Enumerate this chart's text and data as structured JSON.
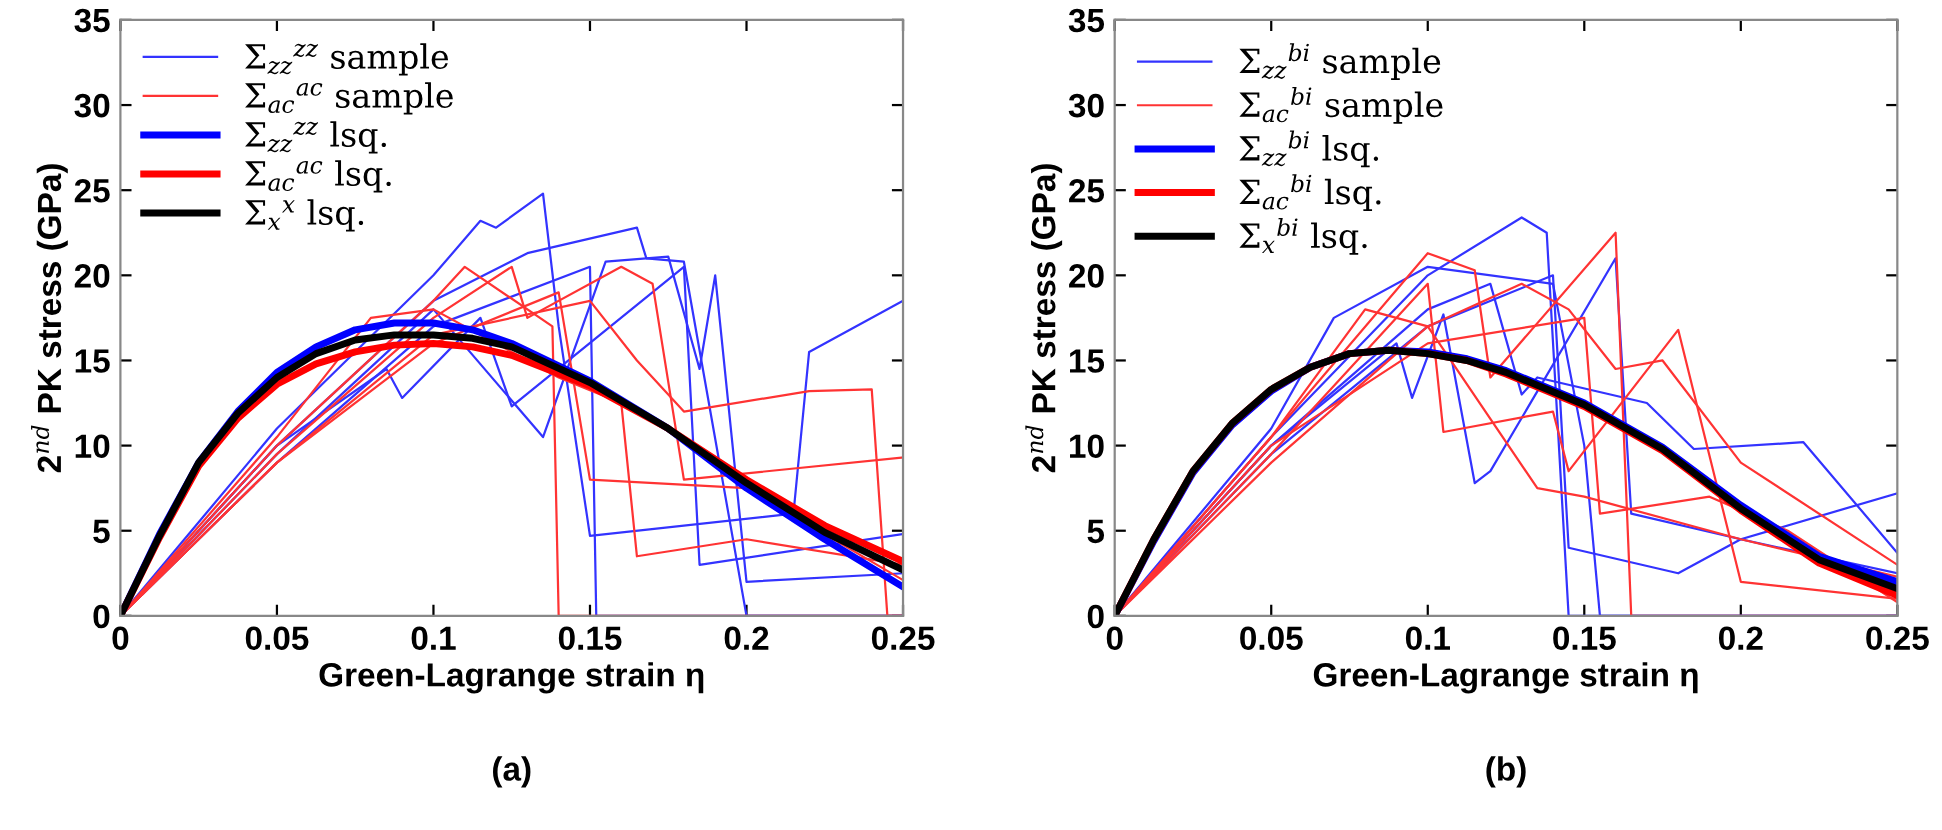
{
  "chart_data": [
    {
      "type": "line",
      "xlabel": "Green-Lagrange strain η",
      "ylabel": "2$^{nd}$ PK stress (GPa)",
      "annotations": [
        "(a)"
      ],
      "xlim": [
        0,
        0.25
      ],
      "ylim": [
        0,
        35
      ],
      "xticks": [
        0,
        0.05,
        0.1,
        0.15,
        0.2,
        0.25
      ],
      "yticks": [
        0,
        5,
        10,
        15,
        20,
        25,
        30,
        35
      ],
      "grid": false,
      "legend": "top left",
      "series": [
        {
          "name": "Σ$_{zz}$$^{zz}$ sample",
          "color": "#3333ff",
          "x": [
            0,
            0.05,
            0.1,
            0.115,
            0.12,
            0.135,
            0.14,
            0.15,
            0.215,
            0.22,
            0.25
          ],
          "values": [
            0,
            11,
            20,
            23.2,
            22.8,
            24.8,
            17,
            4.7,
            6,
            15.5,
            18.5
          ]
        },
        {
          "color": "#3333ff",
          "x": [
            0,
            0.05,
            0.1,
            0.13,
            0.165,
            0.168,
            0.18,
            0.2,
            0.25
          ],
          "values": [
            0,
            10,
            18.5,
            21.3,
            22.8,
            21,
            20.8,
            0,
            0
          ]
        },
        {
          "color": "#3333ff",
          "x": [
            0,
            0.05,
            0.085,
            0.09,
            0.115,
            0.125,
            0.18,
            0.185,
            0.25
          ],
          "values": [
            0,
            10,
            14.5,
            12.8,
            17.5,
            12.3,
            20.5,
            3,
            4.8
          ]
        },
        {
          "color": "#3333ff",
          "x": [
            0,
            0.05,
            0.1,
            0.135,
            0.155,
            0.175,
            0.185,
            0.19,
            0.2,
            0.25
          ],
          "values": [
            0,
            9.5,
            18,
            10.5,
            20.8,
            21.1,
            14.5,
            20,
            2,
            2.5
          ]
        },
        {
          "color": "#3333ff",
          "x": [
            0,
            0.05,
            0.1,
            0.15,
            0.152,
            0.18,
            0.25
          ],
          "values": [
            0,
            9,
            17,
            20.5,
            0,
            0,
            0
          ]
        },
        {
          "name": "Σ$_{ac}$$^{ac}$ sample",
          "color": "#ff3333",
          "x": [
            0,
            0.05,
            0.1,
            0.11,
            0.138,
            0.14,
            0.25
          ],
          "values": [
            0,
            10,
            18.5,
            20.5,
            17,
            0,
            0
          ]
        },
        {
          "color": "#ff3333",
          "x": [
            0,
            0.05,
            0.1,
            0.125,
            0.13,
            0.16,
            0.17,
            0.18,
            0.25
          ],
          "values": [
            0,
            9.5,
            17.5,
            20.5,
            17.5,
            20.5,
            19.5,
            8,
            9.3
          ]
        },
        {
          "color": "#ff3333",
          "x": [
            0,
            0.05,
            0.1,
            0.15,
            0.165,
            0.18,
            0.22,
            0.24,
            0.245,
            0.25
          ],
          "values": [
            0,
            9,
            16.5,
            18.5,
            15,
            12,
            13.2,
            13.3,
            0,
            0
          ]
        },
        {
          "color": "#ff3333",
          "x": [
            0,
            0.05,
            0.08,
            0.1,
            0.14,
            0.16,
            0.165,
            0.2,
            0.25
          ],
          "values": [
            0,
            10.5,
            17.5,
            18,
            14,
            12.5,
            3.5,
            4.5,
            3
          ]
        },
        {
          "color": "#ff3333",
          "x": [
            0,
            0.05,
            0.1,
            0.14,
            0.15,
            0.2,
            0.25
          ],
          "values": [
            0,
            9,
            16,
            19,
            8,
            7.5,
            2.1
          ]
        },
        {
          "name": "Σ$_{zz}$$^{zz}$ lsq.",
          "color": "#0000ff",
          "x": [
            0,
            0.0125,
            0.025,
            0.0375,
            0.05,
            0.0625,
            0.075,
            0.0875,
            0.1,
            0.1125,
            0.125,
            0.15,
            0.175,
            0.2,
            0.225,
            0.25
          ],
          "values": [
            0,
            4.8,
            9,
            12,
            14.3,
            15.8,
            16.8,
            17.2,
            17.2,
            16.8,
            16,
            13.8,
            11,
            7.5,
            4.5,
            1.7
          ]
        },
        {
          "name": "Σ$_{ac}$$^{ac}$ lsq.",
          "color": "#ff0000",
          "x": [
            0,
            0.0125,
            0.025,
            0.0375,
            0.05,
            0.0625,
            0.075,
            0.0875,
            0.1,
            0.1125,
            0.125,
            0.15,
            0.175,
            0.2,
            0.225,
            0.25
          ],
          "values": [
            0,
            4.6,
            8.8,
            11.6,
            13.6,
            14.8,
            15.5,
            15.9,
            16,
            15.8,
            15.3,
            13.5,
            11,
            8,
            5.3,
            3.2
          ]
        },
        {
          "name": "Σ$_{x}$$^{x}$ lsq.",
          "color": "#000000",
          "x": [
            0,
            0.0125,
            0.025,
            0.0375,
            0.05,
            0.0625,
            0.075,
            0.0875,
            0.1,
            0.1125,
            0.125,
            0.15,
            0.175,
            0.2,
            0.225,
            0.25
          ],
          "values": [
            0,
            4.7,
            9,
            11.9,
            14,
            15.4,
            16.2,
            16.5,
            16.5,
            16.3,
            15.8,
            13.7,
            11,
            7.8,
            4.9,
            2.7
          ]
        }
      ]
    },
    {
      "type": "line",
      "xlabel": "Green-Lagrange strain η",
      "ylabel": "2$^{nd}$ PK stress (GPa)",
      "annotations": [
        "(b)"
      ],
      "xlim": [
        0,
        0.25
      ],
      "ylim": [
        0,
        35
      ],
      "xticks": [
        0,
        0.05,
        0.1,
        0.15,
        0.2,
        0.25
      ],
      "yticks": [
        0,
        5,
        10,
        15,
        20,
        25,
        30,
        35
      ],
      "grid": false,
      "legend": "top left",
      "series": [
        {
          "name": "Σ$_{zz}$$^{bi}$ sample",
          "color": "#3333ff",
          "x": [
            0,
            0.05,
            0.1,
            0.13,
            0.138,
            0.145,
            0.25
          ],
          "values": [
            0,
            10.5,
            20,
            23.4,
            22.5,
            0,
            0
          ]
        },
        {
          "color": "#3333ff",
          "x": [
            0,
            0.05,
            0.07,
            0.1,
            0.14,
            0.15,
            0.155,
            0.25
          ],
          "values": [
            0,
            11,
            17.5,
            20.5,
            19.5,
            10,
            0,
            0
          ]
        },
        {
          "color": "#3333ff",
          "x": [
            0,
            0.05,
            0.09,
            0.095,
            0.105,
            0.115,
            0.12,
            0.16,
            0.165,
            0.2,
            0.25
          ],
          "values": [
            0,
            10,
            16,
            12.8,
            17.7,
            7.8,
            8.5,
            21,
            6,
            4.5,
            7.2
          ]
        },
        {
          "color": "#3333ff",
          "x": [
            0,
            0.05,
            0.1,
            0.12,
            0.13,
            0.135,
            0.17,
            0.185,
            0.22,
            0.25
          ],
          "values": [
            0,
            10,
            18,
            19.5,
            13,
            14,
            12.5,
            9.8,
            10.2,
            3.7
          ]
        },
        {
          "color": "#3333ff",
          "x": [
            0,
            0.05,
            0.1,
            0.14,
            0.145,
            0.18,
            0.2,
            0.25
          ],
          "values": [
            0,
            9.5,
            17,
            20,
            4,
            2.5,
            4.5,
            2.5
          ]
        },
        {
          "name": "Σ$_{ac}$$^{bi}$ sample",
          "color": "#ff3333",
          "x": [
            0,
            0.05,
            0.1,
            0.115,
            0.12,
            0.16,
            0.165,
            0.25
          ],
          "values": [
            0,
            10.5,
            21.3,
            20.3,
            14,
            22.5,
            0,
            0
          ]
        },
        {
          "color": "#ff3333",
          "x": [
            0,
            0.05,
            0.1,
            0.105,
            0.14,
            0.145,
            0.18,
            0.2,
            0.25
          ],
          "values": [
            0,
            9.5,
            19.5,
            10.8,
            12,
            8.5,
            16.8,
            2,
            1
          ]
        },
        {
          "color": "#ff3333",
          "x": [
            0,
            0.05,
            0.1,
            0.13,
            0.145,
            0.16,
            0.175,
            0.2,
            0.25
          ],
          "values": [
            0,
            9,
            17,
            19.5,
            18,
            14.5,
            15,
            9,
            3
          ]
        },
        {
          "color": "#ff3333",
          "x": [
            0,
            0.05,
            0.08,
            0.1,
            0.135,
            0.15,
            0.2,
            0.25
          ],
          "values": [
            0,
            10.5,
            18,
            17,
            7.5,
            7,
            4.5,
            2.3
          ]
        },
        {
          "color": "#ff3333",
          "x": [
            0,
            0.05,
            0.1,
            0.15,
            0.155,
            0.19,
            0.215,
            0.25
          ],
          "values": [
            0,
            10,
            16,
            17.5,
            6,
            7,
            5,
            0.8
          ]
        },
        {
          "name": "Σ$_{zz}$$^{bi}$ lsq.",
          "color": "#0000ff",
          "x": [
            0,
            0.0125,
            0.025,
            0.0375,
            0.05,
            0.0625,
            0.075,
            0.0875,
            0.1,
            0.1125,
            0.125,
            0.15,
            0.175,
            0.2,
            0.225,
            0.25
          ],
          "values": [
            0,
            4.4,
            8.4,
            11.2,
            13.2,
            14.6,
            15.4,
            15.6,
            15.5,
            15.1,
            14.4,
            12.5,
            9.9,
            6.5,
            3.5,
            2
          ]
        },
        {
          "name": "Σ$_{ac}$$^{bi}$ lsq.",
          "color": "#ff0000",
          "x": [
            0,
            0.0125,
            0.025,
            0.0375,
            0.05,
            0.0625,
            0.075,
            0.0875,
            0.1,
            0.1125,
            0.125,
            0.15,
            0.175,
            0.2,
            0.225,
            0.25
          ],
          "values": [
            0,
            4.5,
            8.5,
            11.3,
            13.3,
            14.6,
            15.4,
            15.6,
            15.4,
            15,
            14.2,
            12.3,
            9.7,
            6.2,
            3.1,
            1.2
          ]
        },
        {
          "name": "Σ$_{x}$$^{bi}$ lsq.",
          "color": "#000000",
          "x": [
            0,
            0.0125,
            0.025,
            0.0375,
            0.05,
            0.0625,
            0.075,
            0.0875,
            0.1,
            0.1125,
            0.125,
            0.15,
            0.175,
            0.2,
            0.225,
            0.25
          ],
          "values": [
            0,
            4.5,
            8.5,
            11.3,
            13.3,
            14.6,
            15.4,
            15.6,
            15.4,
            15,
            14.3,
            12.4,
            9.8,
            6.3,
            3.3,
            1.6
          ]
        }
      ]
    }
  ]
}
